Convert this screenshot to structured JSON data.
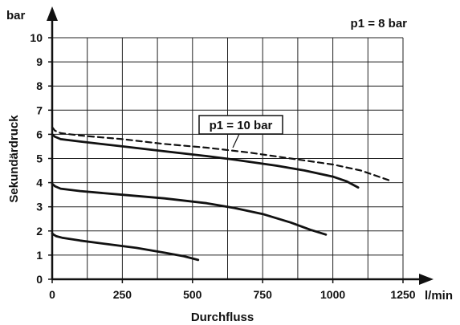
{
  "chart_data": {
    "type": "line",
    "title": "",
    "xlabel": "Durchfluss",
    "ylabel": "Sekundärdruck",
    "x_unit": "l/min",
    "y_unit": "bar",
    "xlim": [
      0,
      1250
    ],
    "ylim": [
      0,
      10
    ],
    "x_ticks": [
      "0",
      "250",
      "500",
      "750",
      "1000",
      "1250"
    ],
    "y_ticks": [
      "0",
      "1",
      "2",
      "3",
      "4",
      "5",
      "6",
      "7",
      "8",
      "9",
      "10"
    ],
    "grid": true,
    "legend": "none",
    "series": [
      {
        "name": "p1 = 8 bar",
        "style": "solid",
        "points": [
          [
            0,
            1.9
          ],
          [
            5,
            1.85
          ],
          [
            15,
            1.78
          ],
          [
            35,
            1.72
          ],
          [
            100,
            1.6
          ],
          [
            200,
            1.45
          ],
          [
            300,
            1.3
          ],
          [
            400,
            1.1
          ],
          [
            470,
            0.95
          ],
          [
            520,
            0.8
          ]
        ]
      },
      {
        "name": "p1 = 8 bar",
        "style": "solid",
        "points": [
          [
            0,
            3.95
          ],
          [
            10,
            3.85
          ],
          [
            30,
            3.75
          ],
          [
            100,
            3.65
          ],
          [
            250,
            3.5
          ],
          [
            400,
            3.35
          ],
          [
            550,
            3.15
          ],
          [
            650,
            2.95
          ],
          [
            750,
            2.7
          ],
          [
            850,
            2.35
          ],
          [
            920,
            2.05
          ],
          [
            975,
            1.85
          ]
        ]
      },
      {
        "name": "p1 = 8 bar",
        "style": "solid",
        "points": [
          [
            0,
            6.0
          ],
          [
            10,
            5.9
          ],
          [
            30,
            5.8
          ],
          [
            100,
            5.7
          ],
          [
            250,
            5.5
          ],
          [
            400,
            5.3
          ],
          [
            550,
            5.1
          ],
          [
            650,
            4.95
          ],
          [
            800,
            4.7
          ],
          [
            900,
            4.5
          ],
          [
            1000,
            4.25
          ],
          [
            1050,
            4.05
          ],
          [
            1090,
            3.8
          ]
        ]
      },
      {
        "name": "p1 = 10 bar",
        "style": "dashed",
        "points": [
          [
            0,
            6.3
          ],
          [
            10,
            6.15
          ],
          [
            30,
            6.05
          ],
          [
            100,
            5.95
          ],
          [
            250,
            5.8
          ],
          [
            400,
            5.6
          ],
          [
            550,
            5.45
          ],
          [
            700,
            5.25
          ],
          [
            850,
            5.0
          ],
          [
            1000,
            4.75
          ],
          [
            1100,
            4.5
          ],
          [
            1200,
            4.1
          ]
        ]
      }
    ],
    "annotations": {
      "p1_8": "p1 = 8 bar",
      "p1_10": "p1 = 10 bar"
    }
  },
  "colors": {
    "line": "#111111",
    "grid": "#222222",
    "background": "#ffffff"
  }
}
